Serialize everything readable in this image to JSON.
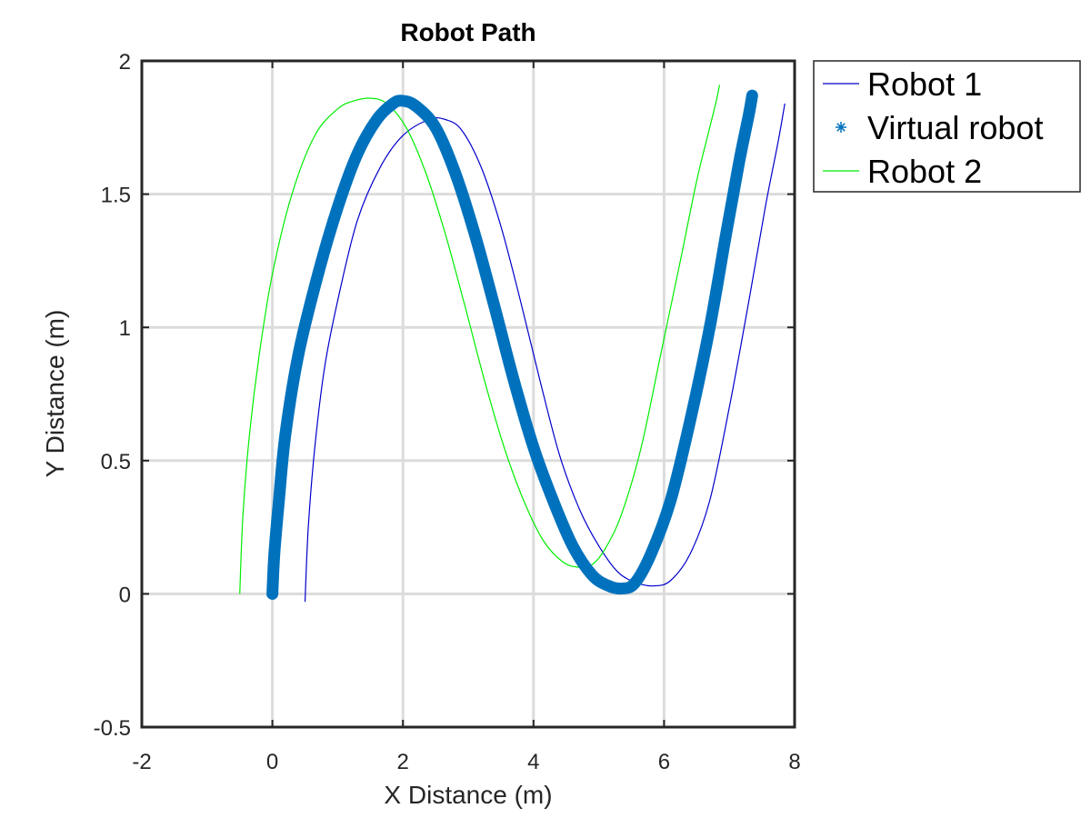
{
  "chart_data": {
    "type": "line",
    "title": "Robot Path",
    "xlabel": "X Distance (m)",
    "ylabel": "Y Distance (m)",
    "xlim": [
      -2,
      8
    ],
    "ylim": [
      -0.5,
      2
    ],
    "xticks": [
      -2,
      0,
      2,
      4,
      6,
      8
    ],
    "yticks": [
      -0.5,
      0,
      0.5,
      1,
      1.5,
      2
    ],
    "xtick_labels": [
      "-2",
      "0",
      "2",
      "4",
      "6",
      "8"
    ],
    "ytick_labels": [
      "-0.5",
      "0",
      "0.5",
      "1",
      "1.5",
      "2"
    ],
    "grid": true,
    "legend_position": "outside-top-right",
    "series": [
      {
        "name": "Robot 1",
        "style": "thin-line",
        "color": "#0000cc",
        "x": [
          0.5,
          0.55,
          0.65,
          0.8,
          1.0,
          1.3,
          1.65,
          2.0,
          2.4,
          2.65,
          2.9,
          3.2,
          3.5,
          3.8,
          4.1,
          4.4,
          4.7,
          5.0,
          5.3,
          5.6,
          5.85,
          6.1,
          6.4,
          6.7,
          7.0,
          7.3,
          7.55,
          7.75,
          7.85
        ],
        "y": [
          -0.03,
          0.25,
          0.55,
          0.85,
          1.1,
          1.4,
          1.6,
          1.72,
          1.78,
          1.78,
          1.74,
          1.6,
          1.38,
          1.1,
          0.8,
          0.52,
          0.32,
          0.18,
          0.08,
          0.04,
          0.03,
          0.05,
          0.15,
          0.35,
          0.7,
          1.1,
          1.45,
          1.7,
          1.84
        ]
      },
      {
        "name": "Virtual robot",
        "style": "asterisk-markers",
        "color": "#0072bd",
        "x": [
          0.0,
          0.03,
          0.1,
          0.2,
          0.4,
          0.7,
          1.0,
          1.3,
          1.6,
          1.85,
          2.0,
          2.2,
          2.5,
          2.8,
          3.1,
          3.4,
          3.7,
          4.0,
          4.3,
          4.6,
          4.9,
          5.15,
          5.35,
          5.55,
          5.8,
          6.1,
          6.4,
          6.7,
          6.95,
          7.15,
          7.3,
          7.35
        ],
        "y": [
          0.0,
          0.15,
          0.35,
          0.6,
          0.9,
          1.2,
          1.45,
          1.65,
          1.78,
          1.84,
          1.85,
          1.83,
          1.75,
          1.58,
          1.35,
          1.08,
          0.8,
          0.55,
          0.35,
          0.18,
          0.07,
          0.03,
          0.02,
          0.04,
          0.15,
          0.35,
          0.65,
          1.0,
          1.35,
          1.62,
          1.8,
          1.87
        ]
      },
      {
        "name": "Robot 2",
        "style": "thin-line",
        "color": "#00ee00",
        "x": [
          -0.5,
          -0.45,
          -0.35,
          -0.2,
          0.0,
          0.3,
          0.65,
          1.0,
          1.25,
          1.5,
          1.75,
          2.05,
          2.35,
          2.65,
          2.95,
          3.25,
          3.55,
          3.85,
          4.15,
          4.45,
          4.7,
          4.9,
          5.1,
          5.35,
          5.65,
          5.95,
          6.25,
          6.5,
          6.7,
          6.8,
          6.85
        ],
        "y": [
          0.0,
          0.3,
          0.6,
          0.9,
          1.2,
          1.5,
          1.72,
          1.82,
          1.85,
          1.86,
          1.84,
          1.75,
          1.58,
          1.35,
          1.08,
          0.8,
          0.55,
          0.35,
          0.2,
          0.12,
          0.1,
          0.11,
          0.17,
          0.3,
          0.55,
          0.9,
          1.25,
          1.55,
          1.75,
          1.85,
          1.91
        ]
      }
    ]
  }
}
